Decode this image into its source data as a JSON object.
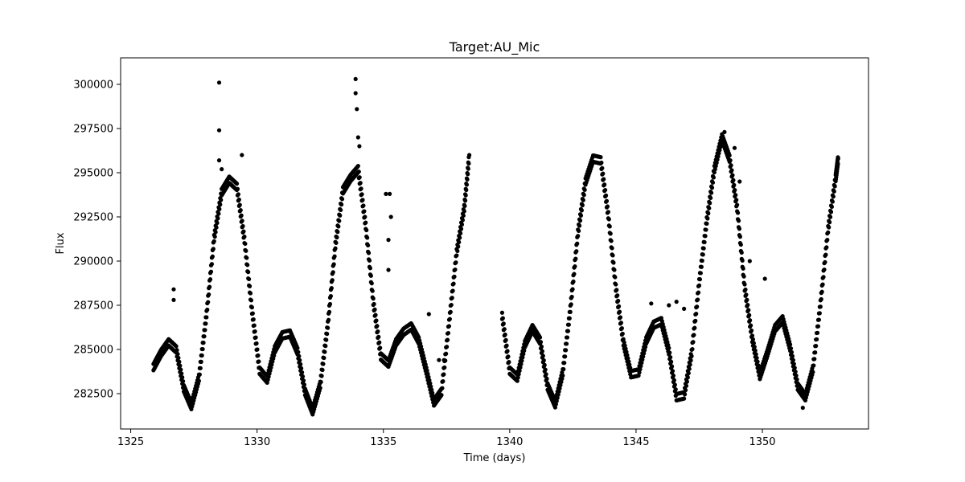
{
  "chart_data": {
    "type": "scatter",
    "title": "Target:AU_Mic",
    "xlabel": "Time (days)",
    "ylabel": "Flux",
    "xlim": [
      1324.6,
      1354.2
    ],
    "ylim": [
      280500,
      301500
    ],
    "xticks": [
      1325,
      1330,
      1335,
      1340,
      1345,
      1350
    ],
    "xtick_labels": [
      "1325",
      "1330",
      "1335",
      "1340",
      "1345",
      "1350"
    ],
    "yticks": [
      282500,
      285000,
      287500,
      290000,
      292500,
      295000,
      297500,
      300000
    ],
    "ytick_labels": [
      "282500",
      "285000",
      "287500",
      "290000",
      "292500",
      "295000",
      "297500",
      "300000"
    ],
    "grid": false,
    "marker_color": "#000000",
    "series": [
      {
        "x": [
          1325.9,
          1326.2,
          1326.5,
          1326.8,
          1327.1,
          1327.4,
          1327.7,
          1328.0,
          1328.3,
          1328.6,
          1328.9,
          1329.2,
          1329.5,
          1329.8,
          1330.1,
          1330.4,
          1330.7,
          1331.0,
          1331.3,
          1331.6,
          1331.9,
          1332.2,
          1332.5,
          1332.8,
          1333.1,
          1333.4,
          1333.7,
          1334.0,
          1334.3,
          1334.6,
          1334.9,
          1335.2,
          1335.5,
          1335.8,
          1336.1,
          1336.4,
          1336.7,
          1337.0,
          1337.3,
          1337.6,
          1337.9,
          1338.2,
          1338.4
        ],
        "y": [
          284000,
          284800,
          285400,
          285000,
          282800,
          281800,
          283400,
          287000,
          291300,
          293900,
          294600,
          294200,
          291200,
          287200,
          283800,
          283300,
          285000,
          285800,
          285900,
          284900,
          282600,
          281500,
          283000,
          286400,
          290900,
          294000,
          294700,
          295200,
          292000,
          287700,
          284600,
          284200,
          285400,
          286000,
          286300,
          285500,
          283800,
          282000,
          282600,
          286500,
          290500,
          293000,
          296000
        ]
      },
      {
        "x": [
          1339.7,
          1340.0,
          1340.3,
          1340.6,
          1340.9,
          1341.2,
          1341.5,
          1341.8,
          1342.1,
          1342.4,
          1342.7,
          1343.0,
          1343.3,
          1343.6,
          1343.9,
          1344.2,
          1344.5,
          1344.8,
          1345.1,
          1345.4,
          1345.7,
          1346.0,
          1346.3,
          1346.6,
          1346.9,
          1347.2,
          1347.5,
          1347.8,
          1348.1,
          1348.4,
          1348.7,
          1349.0,
          1349.3,
          1349.6,
          1349.9,
          1350.2,
          1350.5,
          1350.8,
          1351.1,
          1351.4,
          1351.7,
          1352.0,
          1352.3,
          1352.6,
          1352.9,
          1353.0
        ],
        "y": [
          286900,
          283800,
          283400,
          285300,
          286200,
          285500,
          282900,
          281900,
          283700,
          287300,
          291600,
          294500,
          295800,
          295700,
          292600,
          288500,
          285400,
          283600,
          283700,
          285500,
          286400,
          286600,
          284900,
          282300,
          282400,
          284800,
          288800,
          292300,
          295200,
          297000,
          295800,
          293000,
          288500,
          285600,
          283500,
          284800,
          286200,
          286700,
          285100,
          282900,
          282300,
          283900,
          287600,
          291800,
          294700,
          295800
        ]
      },
      {
        "x": [
          1328.5,
          1328.5,
          1328.5,
          1328.6,
          1328.6,
          1329.4,
          1333.9,
          1333.9,
          1333.95,
          1334.0,
          1334.05,
          1335.1,
          1335.2,
          1335.2,
          1335.25,
          1335.3,
          1336.8,
          1337.2,
          1346.3,
          1346.6,
          1346.9,
          1348.5,
          1348.9,
          1349.1,
          1349.5,
          1350.1,
          1351.6,
          1326.7,
          1326.7,
          1337.4,
          1345.6
        ],
        "y": [
          300100,
          297400,
          295700,
          293800,
          295200,
          296000,
          300300,
          299500,
          298600,
          297000,
          296500,
          293800,
          291200,
          289500,
          293800,
          292500,
          287000,
          284400,
          287500,
          287700,
          287300,
          297300,
          296400,
          294500,
          290000,
          289000,
          281700,
          288400,
          287800,
          284400,
          287600
        ]
      }
    ]
  }
}
